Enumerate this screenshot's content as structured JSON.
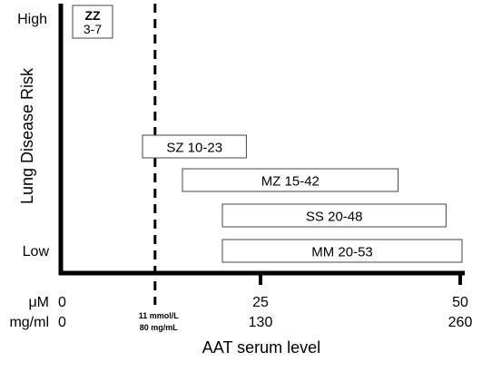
{
  "chart_data": {
    "type": "bar",
    "orientation": "horizontal-range",
    "xlabel": "AAT serum level",
    "ylabel": "Lung Disease Risk",
    "y_low_label": "Low",
    "y_high_label": "High",
    "x_units": [
      "μM",
      "mg/ml"
    ],
    "xlim": [
      0,
      50
    ],
    "ticks": [
      {
        "um": "0",
        "mgml": "0",
        "value": 0
      },
      {
        "um": "25",
        "mgml": "130",
        "value": 25
      },
      {
        "um": "50",
        "mgml": "260",
        "value": 50
      }
    ],
    "threshold": {
      "value": 11,
      "label_line1": "11 mmol/L",
      "label_line2": "80 mg/mL",
      "style": "dashed"
    },
    "series": [
      {
        "genotype": "ZZ",
        "range_label": "3-7",
        "min": 3,
        "max": 7,
        "risk": "High"
      },
      {
        "genotype": "SZ",
        "range_label": "10-23",
        "min": 10,
        "max": 23
      },
      {
        "genotype": "MZ",
        "range_label": "15-42",
        "min": 15,
        "max": 42
      },
      {
        "genotype": "SS",
        "range_label": "20-48",
        "min": 20,
        "max": 48
      },
      {
        "genotype": "MM",
        "range_label": "20-53",
        "min": 20,
        "max": 53,
        "risk": "Low"
      }
    ]
  }
}
